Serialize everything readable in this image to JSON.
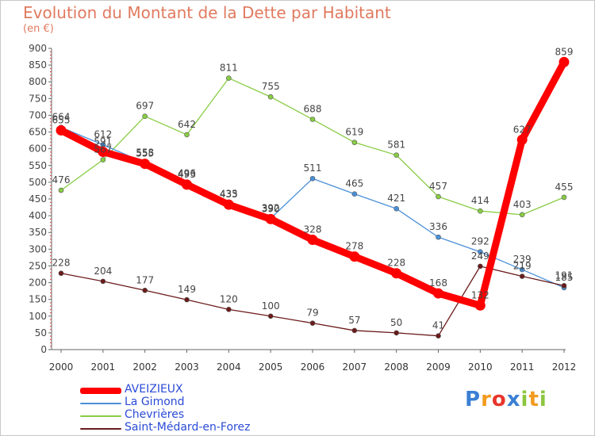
{
  "header": {
    "title": "Evolution du Montant de la Dette par Habitant",
    "unit": "(en €)"
  },
  "chart_data": {
    "type": "line",
    "title": "Evolution du Montant de la Dette par Habitant",
    "subtitle": "(en €)",
    "categories": [
      "2000",
      "2001",
      "2002",
      "2003",
      "2004",
      "2005",
      "2006",
      "2007",
      "2008",
      "2009",
      "2010",
      "2011",
      "2012"
    ],
    "ylim": [
      0,
      900
    ],
    "yticks": [
      0,
      50,
      100,
      150,
      200,
      250,
      300,
      350,
      400,
      450,
      500,
      550,
      600,
      650,
      700,
      750,
      800,
      850,
      900
    ],
    "grid": false,
    "legend_position": "bottom-left",
    "series": [
      {
        "name": "AVEIZIEUX",
        "color": "#ff0000",
        "values": [
          655,
          591,
          555,
          493,
          433,
          390,
          328,
          278,
          228,
          168,
          132,
          627,
          859
        ]
      },
      {
        "name": "La Gimond",
        "color": "#4a90d9",
        "values": [
          664,
          612,
          558,
          496,
          435,
          392,
          511,
          465,
          421,
          336,
          292,
          239,
          185
        ]
      },
      {
        "name": "Chevrières",
        "color": "#88cc44",
        "values": [
          476,
          567,
          697,
          642,
          811,
          755,
          688,
          619,
          581,
          457,
          414,
          403,
          455
        ]
      },
      {
        "name": "Saint-Médard-en-Forez",
        "color": "#6b1a1a",
        "values": [
          228,
          204,
          177,
          149,
          120,
          100,
          79,
          57,
          50,
          41,
          249,
          219,
          191
        ]
      }
    ]
  },
  "branding": {
    "logo_text": "Proxiti",
    "logo_letters": [
      "P",
      "r",
      "o",
      "x",
      "i",
      "t",
      "i"
    ],
    "logo_colors": [
      "#3a7fd5",
      "#f29a1f",
      "#e8352b",
      "#3a7fd5",
      "#8cc63f",
      "#f29a1f",
      "#8cc63f"
    ]
  }
}
